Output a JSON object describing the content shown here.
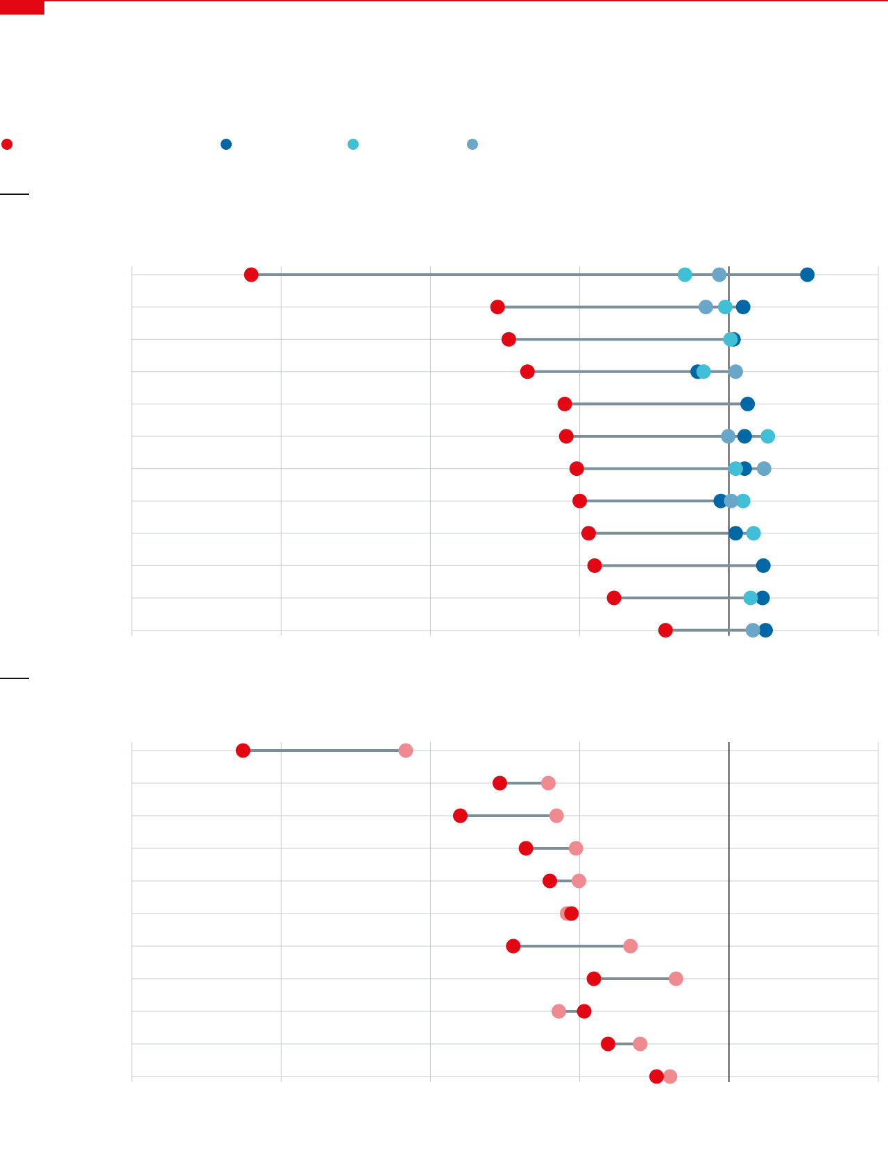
{
  "colors": {
    "accent_red": "#e30613",
    "dark_blue": "#0067a5",
    "cyan": "#41bfd6",
    "gray_blue": "#6aa6c8",
    "pink": "#f08a91",
    "connector": "#7a8f9b",
    "grid": "#c4ccd3",
    "reference": "#222222"
  },
  "legend": [
    {
      "label": "",
      "color": "#e30613",
      "icon": "red-dot-icon"
    },
    {
      "label": "",
      "color": "#0067a5",
      "icon": "dark-blue-dot-icon"
    },
    {
      "label": "",
      "color": "#41bfd6",
      "icon": "cyan-dot-icon"
    },
    {
      "label": "",
      "color": "#6aa6c8",
      "icon": "gray-blue-dot-icon"
    }
  ],
  "chart_data": [
    {
      "type": "dot-plot",
      "title": "",
      "xlim": [
        0,
        100
      ],
      "reference": 80,
      "grid": true,
      "series": [
        {
          "key": "red",
          "color": "#e30613",
          "values": [
            16,
            49,
            50.5,
            53,
            58,
            58.2,
            59.6,
            60,
            61.2,
            62,
            64.6,
            71.5
          ]
        },
        {
          "key": "dark",
          "color": "#0067a5",
          "values": [
            90.5,
            81.9,
            80.6,
            75.8,
            82.5,
            82.1,
            82.1,
            78.9,
            80.9,
            84.6,
            84.5,
            84.9
          ]
        },
        {
          "key": "cyan",
          "color": "#41bfd6",
          "values": [
            74.1,
            79.5,
            80.2,
            76.6,
            null,
            85.2,
            80.9,
            81.9,
            83.3,
            null,
            82.9,
            null
          ]
        },
        {
          "key": "grayblue",
          "color": "#6aa6c8",
          "values": [
            78.7,
            76.9,
            null,
            80.9,
            null,
            79.9,
            84.7,
            80.3,
            null,
            null,
            null,
            83.2
          ]
        }
      ]
    },
    {
      "type": "dot-plot",
      "title": "",
      "xlim": [
        0,
        100
      ],
      "reference": 80,
      "grid": true,
      "series": [
        {
          "key": "red",
          "color": "#e30613",
          "values": [
            14.9,
            49.3,
            44.0,
            52.8,
            56.0,
            58.9,
            51.1,
            61.9,
            60.6,
            63.8,
            70.3
          ]
        },
        {
          "key": "pink",
          "color": "#f08a91",
          "values": [
            36.7,
            55.8,
            56.9,
            59.5,
            59.9,
            58.3,
            66.8,
            72.9,
            57.2,
            68.1,
            72.1
          ]
        }
      ]
    }
  ]
}
